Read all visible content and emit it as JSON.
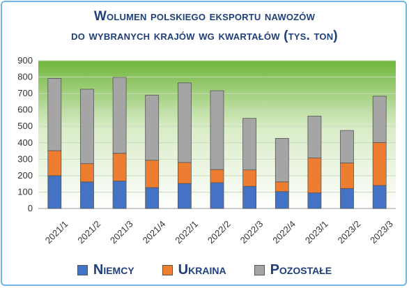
{
  "title_line1": "Wolumen polskiego eksportu nawozów",
  "title_line2": "do wybranych krajów wg kwartałów (tys. ton)",
  "chart_data": {
    "type": "bar",
    "stacked": true,
    "categories": [
      "2021/1",
      "2021/2",
      "2021/3",
      "2021/4",
      "2022/1",
      "2022/2",
      "2022/3",
      "2022/4",
      "2023/1",
      "2023/2",
      "2023/3"
    ],
    "series": [
      {
        "name": "Niemcy",
        "color": "#4472c4",
        "values": [
          200,
          162,
          167,
          127,
          152,
          157,
          135,
          103,
          95,
          122,
          140
        ]
      },
      {
        "name": "Ukraina",
        "color": "#ed7d31",
        "values": [
          152,
          111,
          169,
          167,
          128,
          80,
          100,
          59,
          213,
          155,
          262
        ]
      },
      {
        "name": "Pozostałe",
        "color": "#a5a5a5",
        "values": [
          440,
          453,
          462,
          396,
          485,
          480,
          314,
          265,
          255,
          198,
          282
        ]
      }
    ],
    "ylim": [
      0,
      900
    ],
    "yticks": [
      0,
      100,
      200,
      300,
      400,
      500,
      600,
      700,
      800,
      900
    ],
    "grid": true,
    "legend_position": "bottom"
  }
}
